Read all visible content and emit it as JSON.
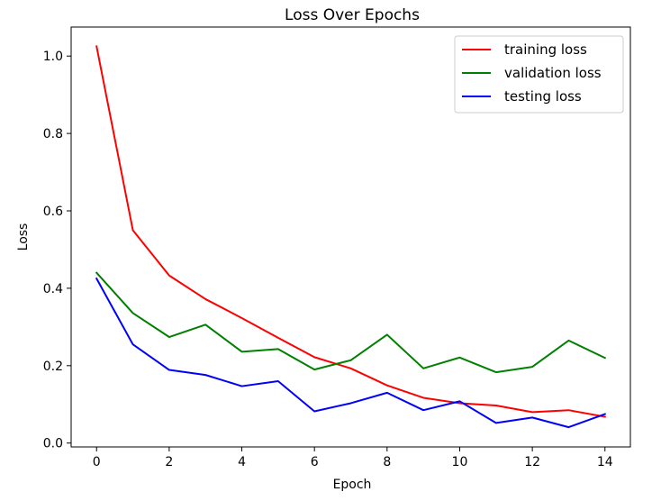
{
  "chart_data": {
    "type": "line",
    "title": "Loss Over Epochs",
    "xlabel": "Epoch",
    "ylabel": "Loss",
    "xlim": [
      -0.7,
      14.7
    ],
    "ylim": [
      -0.01,
      1.075
    ],
    "xticks": [
      0,
      2,
      4,
      6,
      8,
      10,
      12,
      14
    ],
    "yticks": [
      0.0,
      0.2,
      0.4,
      0.6,
      0.8,
      1.0
    ],
    "ytick_labels": [
      "0.0",
      "0.2",
      "0.4",
      "0.6",
      "0.8",
      "1.0"
    ],
    "grid": false,
    "legend_position": "top-right",
    "x": [
      0,
      1,
      2,
      3,
      4,
      5,
      6,
      7,
      8,
      9,
      10,
      11,
      12,
      13,
      14
    ],
    "series": [
      {
        "name": "training loss",
        "color": "#ff0000",
        "values": [
          1.025,
          0.55,
          0.433,
          0.372,
          0.323,
          0.272,
          0.222,
          0.193,
          0.149,
          0.117,
          0.103,
          0.097,
          0.08,
          0.085,
          0.068
        ]
      },
      {
        "name": "validation loss",
        "color": "#008000",
        "values": [
          0.44,
          0.336,
          0.274,
          0.306,
          0.236,
          0.243,
          0.19,
          0.214,
          0.28,
          0.193,
          0.221,
          0.183,
          0.197,
          0.265,
          0.22
        ]
      },
      {
        "name": "testing loss",
        "color": "#0000ff",
        "values": [
          0.425,
          0.255,
          0.189,
          0.176,
          0.147,
          0.16,
          0.082,
          0.103,
          0.13,
          0.085,
          0.108,
          0.052,
          0.066,
          0.041,
          0.075
        ]
      }
    ]
  }
}
